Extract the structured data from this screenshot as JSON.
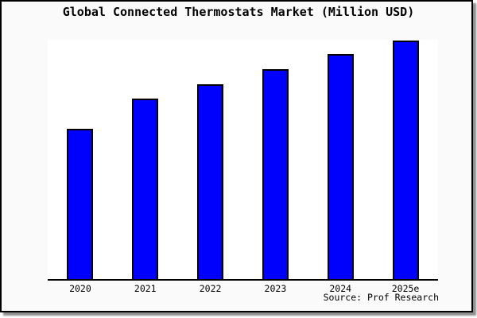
{
  "chart_data": {
    "type": "bar",
    "title": "Global Connected Thermostats Market (Million USD)",
    "categories": [
      "2020",
      "2021",
      "2022",
      "2023",
      "2024",
      "2025e"
    ],
    "values": [
      63,
      75.5,
      81.7,
      88,
      94.2,
      100
    ],
    "values_note": "No y-axis, gridlines or value labels are shown in the chart; values are relative bar heights normalized so that 2025e = 100",
    "ylim": [
      0,
      100
    ],
    "grid": false,
    "legend": false,
    "xlabel": "",
    "ylabel": "",
    "source_text": "Source: Prof Research",
    "colors": {
      "bar_fill": "#0000fd",
      "bar_border": "#000000",
      "axis": "#000000",
      "plot_background": "#ffffff",
      "card_background": "#fafafa",
      "card_border": "#000000",
      "title_text": "#000000"
    }
  }
}
